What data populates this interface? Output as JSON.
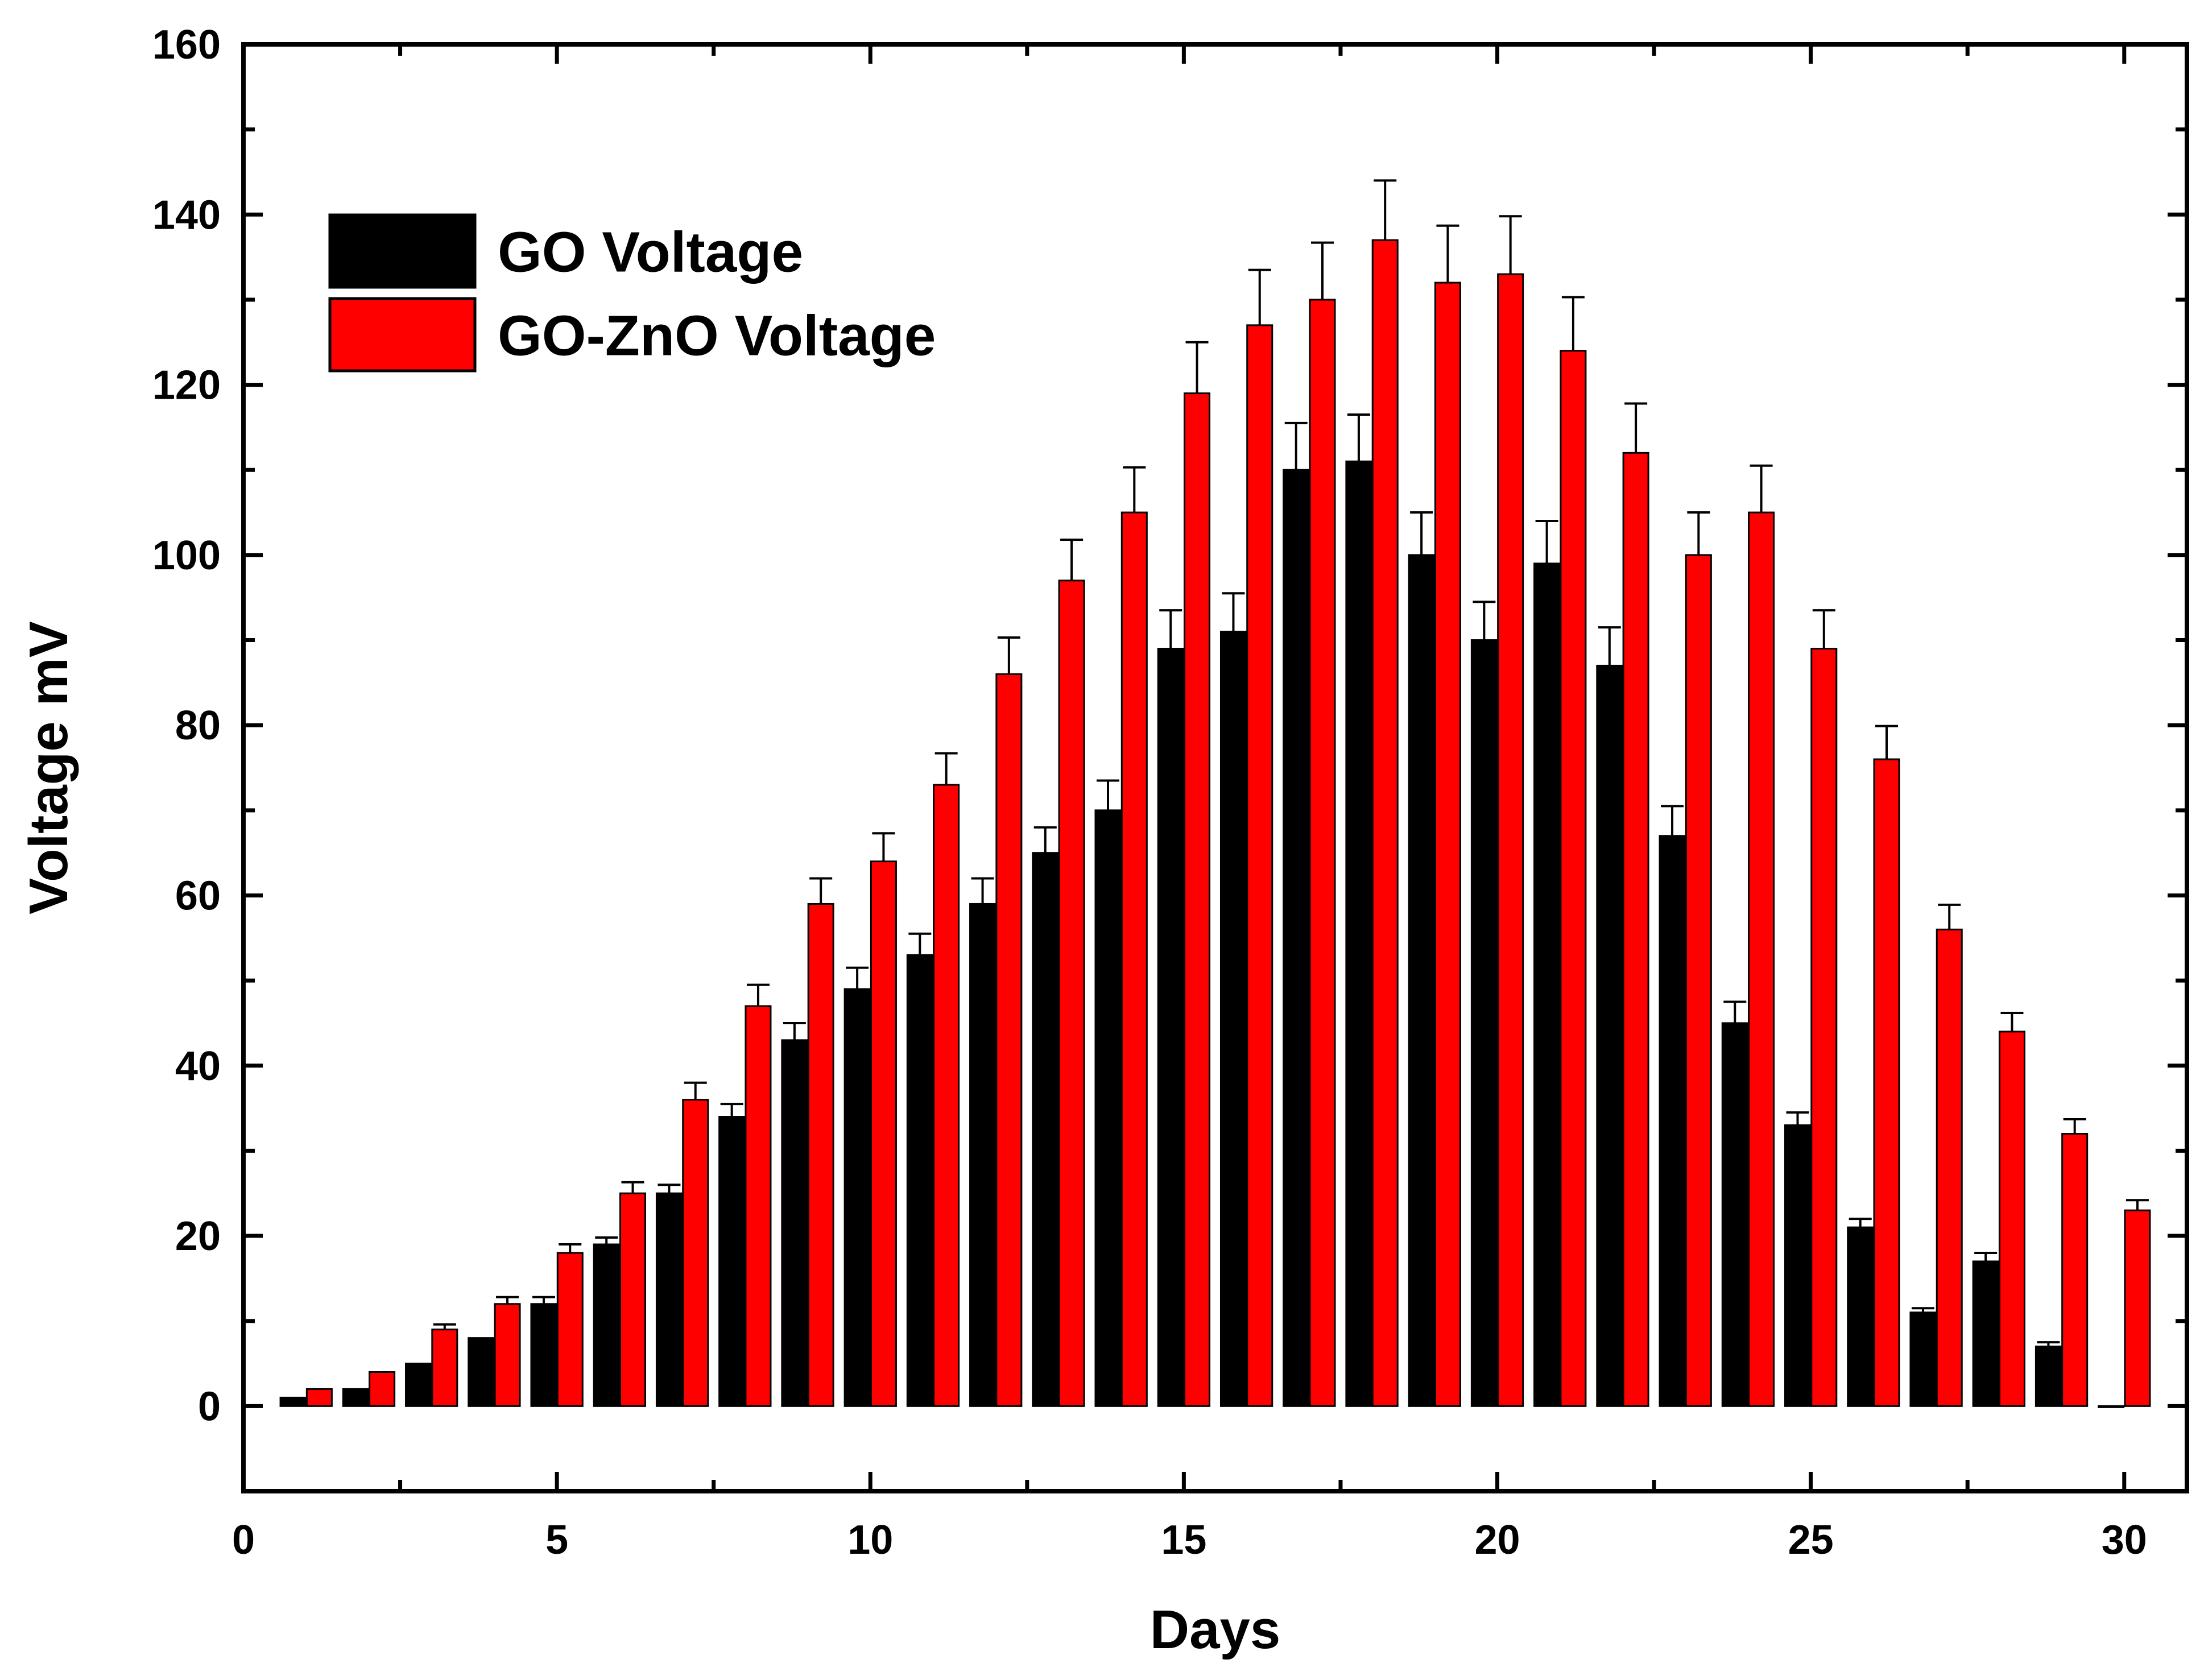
{
  "chart_data": {
    "type": "bar",
    "title": "",
    "xlabel": "Days",
    "ylabel": "Voltage mV",
    "xlim": [
      0,
      31
    ],
    "ylim": [
      -10,
      160
    ],
    "x_ticks": [
      0,
      5,
      10,
      15,
      20,
      25,
      30
    ],
    "y_ticks": [
      0,
      20,
      40,
      60,
      80,
      100,
      120,
      140,
      160
    ],
    "categories": [
      1,
      2,
      3,
      4,
      5,
      6,
      7,
      8,
      9,
      10,
      11,
      12,
      13,
      14,
      15,
      16,
      17,
      18,
      19,
      20,
      21,
      22,
      23,
      24,
      25,
      26,
      27,
      28,
      29,
      30
    ],
    "legend_position": "top-left",
    "series": [
      {
        "name": "GO Voltage",
        "color": "#000000",
        "values": [
          1,
          2,
          5,
          8,
          12,
          19,
          25,
          34,
          43,
          49,
          53,
          59,
          65,
          70,
          89,
          91,
          110,
          111,
          100,
          90,
          99,
          87,
          67,
          45,
          33,
          21,
          11,
          17,
          7,
          0
        ],
        "errors": [
          0,
          0,
          0,
          0,
          0.8,
          0.8,
          1,
          1.5,
          2,
          2.5,
          2.5,
          3,
          3,
          3.5,
          4.5,
          4.5,
          5.5,
          5.5,
          5,
          4.5,
          5,
          4.5,
          3.5,
          2.5,
          1.5,
          1,
          0.5,
          1,
          0.5,
          0
        ]
      },
      {
        "name": "GO-ZnO Voltage",
        "color": "#ff0000",
        "values": [
          2,
          4,
          9,
          12,
          18,
          25,
          36,
          47,
          59,
          64,
          73,
          86,
          97,
          105,
          119,
          127,
          130,
          137,
          132,
          133,
          124,
          112,
          100,
          105,
          89,
          76,
          56,
          44,
          32,
          23
        ],
        "errors": [
          0,
          0,
          0.6,
          0.8,
          1,
          1.3,
          2,
          2.5,
          3,
          3.3,
          3.7,
          4.3,
          4.8,
          5.3,
          6,
          6.5,
          6.7,
          7,
          6.7,
          6.8,
          6.3,
          5.8,
          5,
          5.5,
          4.5,
          3.9,
          2.9,
          2.2,
          1.7,
          1.2
        ]
      }
    ]
  }
}
